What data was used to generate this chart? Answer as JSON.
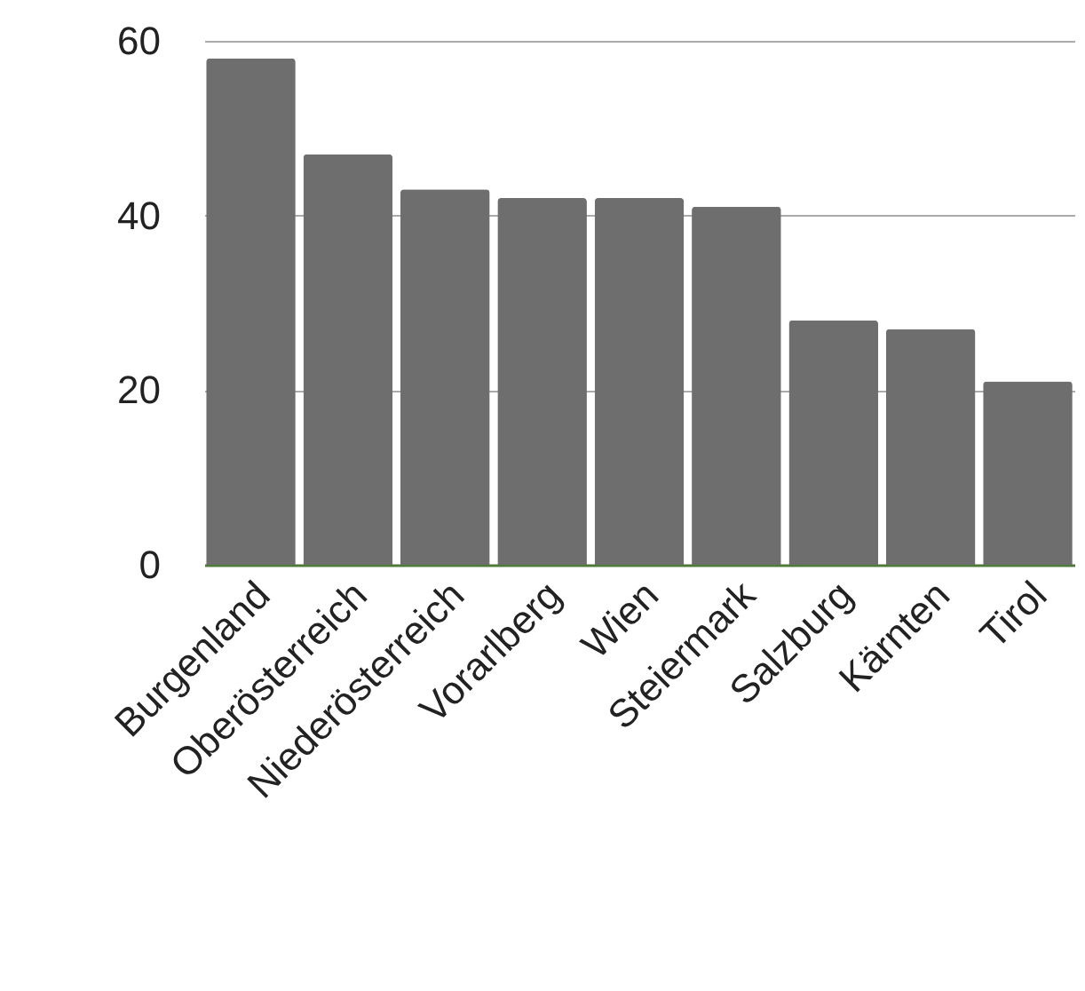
{
  "chart_data": {
    "type": "bar",
    "categories": [
      "Burgenland",
      "Oberösterreich",
      "Niederösterreich",
      "Vorarlberg",
      "Wien",
      "Steiermark",
      "Salzburg",
      "Kärnten",
      "Tirol"
    ],
    "values": [
      58,
      47,
      43,
      42,
      42,
      41,
      28,
      27,
      21
    ],
    "color": "#6e6e6e",
    "ylim": [
      0,
      60
    ],
    "yticks": [
      0,
      20,
      40,
      60
    ],
    "grid": "y"
  }
}
